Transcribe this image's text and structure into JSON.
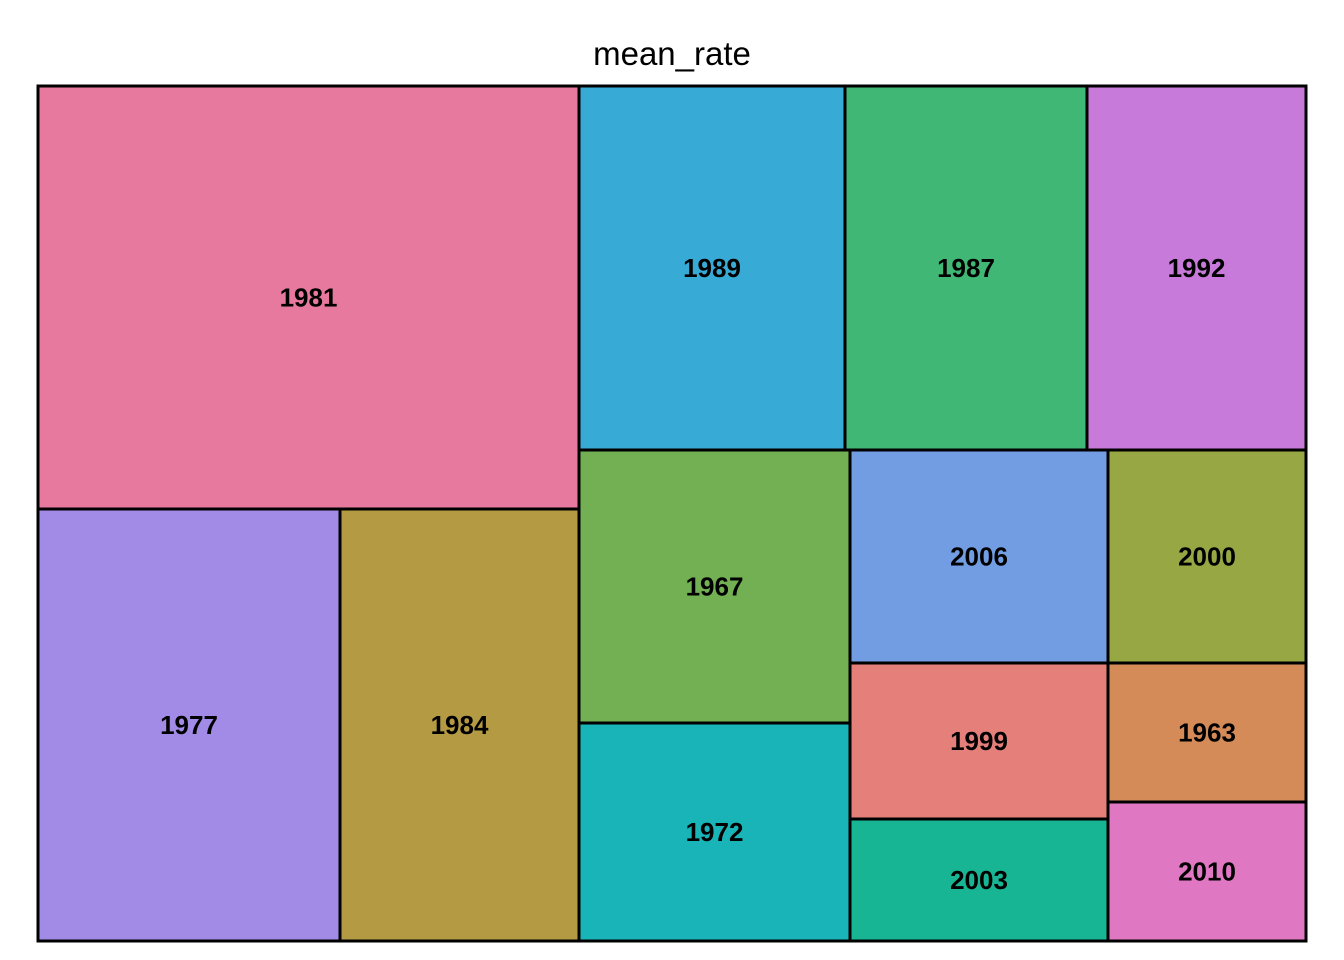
{
  "chart_data": {
    "type": "treemap",
    "title": "mean_rate",
    "tiles": [
      {
        "label": "1981",
        "color": "#E7799E"
      },
      {
        "label": "1977",
        "color": "#A28AE7"
      },
      {
        "label": "1984",
        "color": "#B59A44"
      },
      {
        "label": "1989",
        "color": "#38AAD6"
      },
      {
        "label": "1987",
        "color": "#41B776"
      },
      {
        "label": "1992",
        "color": "#C77ADA"
      },
      {
        "label": "1967",
        "color": "#72B053"
      },
      {
        "label": "1972",
        "color": "#18B4B8"
      },
      {
        "label": "2006",
        "color": "#729DE3"
      },
      {
        "label": "2000",
        "color": "#97A744"
      },
      {
        "label": "1999",
        "color": "#E47F7A"
      },
      {
        "label": "2003",
        "color": "#18B594"
      },
      {
        "label": "1963",
        "color": "#D48B58"
      },
      {
        "label": "2010",
        "color": "#E077C2"
      }
    ]
  }
}
